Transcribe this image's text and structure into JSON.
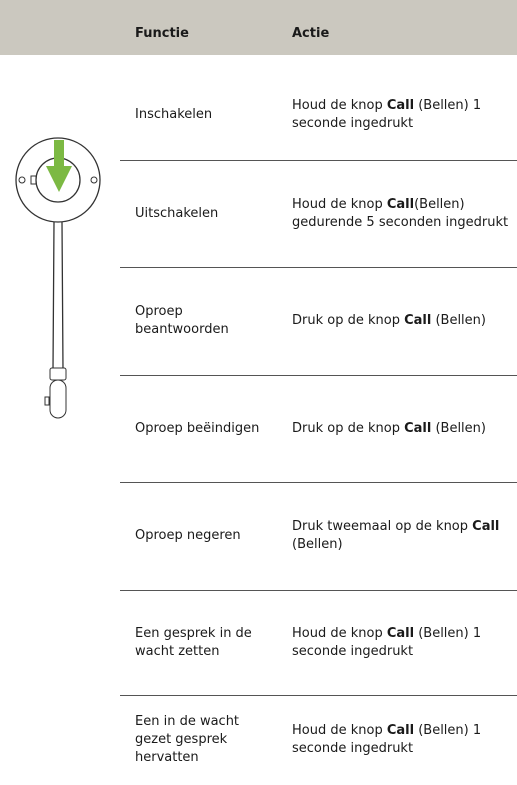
{
  "table": {
    "headers": [
      "Functie",
      "Actie"
    ],
    "rows": [
      {
        "function": "Inschakelen",
        "action": [
          "Houd de knop ",
          "Call",
          " (Bellen) 1 seconde ingedrukt"
        ]
      },
      {
        "function": "Uitschakelen",
        "action": [
          "Houd de knop ",
          "Call",
          "(Bellen) gedurende 5 seconden ingedrukt"
        ]
      },
      {
        "function": "Oproep beantwoorden",
        "action": [
          "Druk op de knop ",
          "Call",
          " (Bellen)"
        ]
      },
      {
        "function": "Oproep beëindigen",
        "action": [
          "Druk op de knop ",
          "Call",
          " (Bellen)"
        ]
      },
      {
        "function": "Oproep negeren",
        "action": [
          "Druk tweemaal op de knop ",
          "Call",
          " (Bellen)"
        ]
      },
      {
        "function": "Een gesprek in de wacht zetten",
        "action": [
          "Houd de knop ",
          "Call",
          " (Bellen) 1 seconde ingedrukt"
        ]
      },
      {
        "function": "Een in de wacht gezet gesprek hervatten",
        "action": [
          "Houd de knop ",
          "Call",
          " (Bellen) 1 seconde ingedrukt"
        ]
      }
    ]
  }
}
